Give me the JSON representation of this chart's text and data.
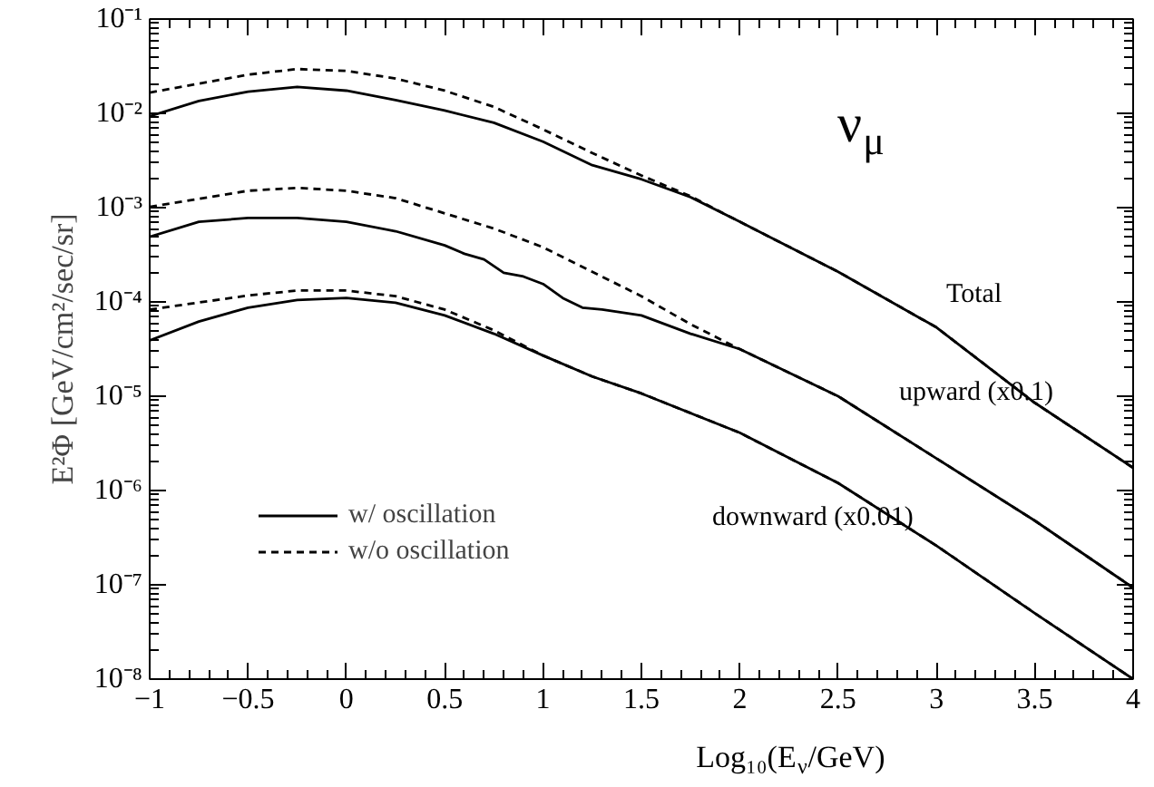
{
  "chart_data": {
    "type": "line",
    "xlabel": "Log₁₀(E$_{ν}$/GeV)",
    "ylabel": "E²Φ [GeV/cm²/sec/sr]",
    "log": "y",
    "xlim": [
      -1,
      4
    ],
    "ylim": [
      1e-08,
      0.1
    ],
    "xticks": [
      -1,
      -0.5,
      0,
      0.5,
      1,
      1.5,
      2,
      2.5,
      3,
      3.5,
      4
    ],
    "yticks": [
      {
        "value": 1e-08,
        "label": "10⁻⁸"
      },
      {
        "value": 1e-07,
        "label": "10⁻⁷"
      },
      {
        "value": 1e-06,
        "label": "10⁻⁶"
      },
      {
        "value": 1e-05,
        "label": "10⁻⁵"
      },
      {
        "value": 0.0001,
        "label": "10⁻⁴"
      },
      {
        "value": 0.001,
        "label": "10⁻³"
      },
      {
        "value": 0.01,
        "label": "10⁻²"
      },
      {
        "value": 0.1,
        "label": "10⁻¹"
      }
    ],
    "grid": false,
    "legend": "bottom left",
    "marker": "none",
    "series": [
      {
        "name": "w/ oscillation",
        "color": "#000000",
        "line_style": "solid",
        "x": [
          -1,
          -0.75,
          -0.5,
          -0.25,
          0,
          0.25,
          0.5,
          0.75,
          1,
          1.25,
          1.5,
          1.75,
          2,
          2.5,
          3,
          3.5,
          4
        ],
        "values": [
          0.00933,
          0.0135,
          0.017,
          0.0191,
          0.0174,
          0.0138,
          0.0107,
          0.00794,
          0.00501,
          0.00282,
          0.002,
          0.00129,
          0.000708,
          0.000209,
          5.37e-05,
          8.51e-06,
          1.74e-06
        ]
      },
      {
        "name": "w/o oscillation",
        "color": "#000000",
        "line_style": "dashed",
        "x": [
          -1,
          -0.5,
          -0.25,
          0,
          0.25,
          0.5,
          0.75,
          1,
          1.25,
          1.5,
          1.75,
          2,
          2.5,
          3,
          3.5,
          4
        ],
        "values": [
          0.0166,
          0.0257,
          0.0295,
          0.0282,
          0.0234,
          0.0174,
          0.0117,
          0.00676,
          0.0038,
          0.00219,
          0.00132,
          0.000708,
          0.000209,
          5.37e-05,
          8.51e-06,
          1.74e-06
        ]
      },
      {
        "color": "#000000",
        "line_style": "solid",
        "x": [
          -1,
          -0.75,
          -0.5,
          -0.25,
          0,
          0.25,
          0.5,
          0.6,
          0.7,
          0.8,
          0.9,
          1,
          1.1,
          1.2,
          1.3,
          1.5,
          1.75,
          2,
          2.5,
          3,
          3.5,
          4
        ],
        "values": [
          0.00049,
          0.000708,
          0.000776,
          0.000776,
          0.000708,
          0.000562,
          0.000398,
          0.000324,
          0.000282,
          0.000204,
          0.000186,
          0.000155,
          0.00011,
          8.7e-05,
          8.3e-05,
          7.2e-05,
          4.6e-05,
          3.16e-05,
          1e-05,
          2.19e-06,
          4.79e-07,
          9.3e-08
        ]
      },
      {
        "color": "#000000",
        "line_style": "dashed",
        "x": [
          -1,
          -0.5,
          -0.25,
          0,
          0.25,
          0.5,
          0.75,
          1,
          1.25,
          1.5,
          1.75,
          2,
          2.5,
          3,
          3.5,
          4
        ],
        "values": [
          0.00102,
          0.00151,
          0.00162,
          0.00151,
          0.00126,
          0.00087,
          0.0006,
          0.00038,
          0.000209,
          0.000115,
          5.8e-05,
          3.16e-05,
          1e-05,
          2.19e-06,
          4.79e-07,
          9.3e-08
        ]
      },
      {
        "color": "#000000",
        "line_style": "solid",
        "x": [
          -1,
          -0.75,
          -0.5,
          -0.25,
          0,
          0.25,
          0.5,
          0.75,
          1,
          1.25,
          1.5,
          2,
          2.5,
          3,
          3.5,
          4
        ],
        "values": [
          3.9e-05,
          6.2e-05,
          8.7e-05,
          0.000105,
          0.00011,
          9.8e-05,
          7.2e-05,
          4.6e-05,
          2.7e-05,
          1.62e-05,
          1.07e-05,
          4.1e-06,
          1.2e-06,
          2.6e-07,
          5e-08,
          1e-08
        ]
      },
      {
        "color": "#000000",
        "line_style": "dashed",
        "x": [
          -1,
          -0.5,
          -0.25,
          0,
          0.25,
          0.5,
          0.75,
          1,
          1.25,
          1.5,
          2,
          2.5,
          3,
          3.5,
          4
        ],
        "values": [
          8.3e-05,
          0.000117,
          0.000132,
          0.000132,
          0.000115,
          8.3e-05,
          5e-05,
          2.7e-05,
          1.62e-05,
          1.07e-05,
          4.1e-06,
          1.2e-06,
          2.6e-07,
          5e-08,
          1e-08
        ]
      }
    ],
    "annotations": [
      "ν$_{μ}$",
      "Total",
      "upward (x0.1)",
      "downward (x0.01)"
    ]
  }
}
